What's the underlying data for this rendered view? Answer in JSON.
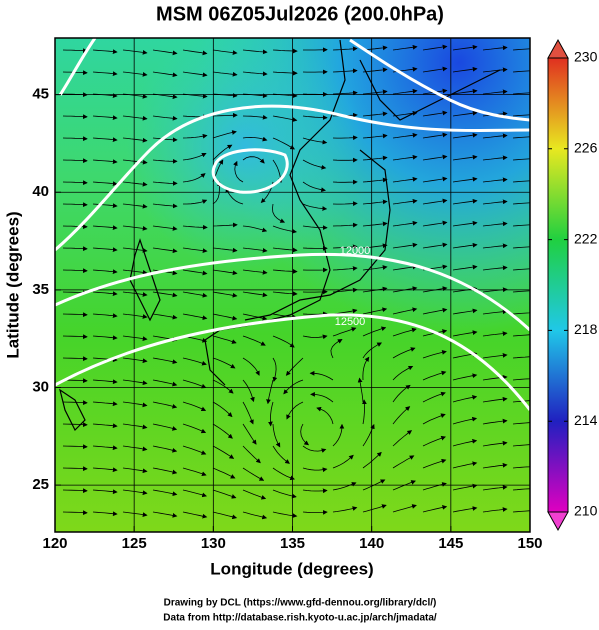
{
  "chart_data": {
    "type": "map",
    "title": "MSM 06Z05Jul2026 (200.0hPa)",
    "xlabel": "Longitude (degrees)",
    "ylabel": "Latitude  (degrees)",
    "xlim": [
      120,
      150
    ],
    "ylim": [
      22.6,
      47.9
    ],
    "xticks": [
      120,
      125,
      130,
      135,
      140,
      145,
      150
    ],
    "yticks": [
      25,
      30,
      35,
      40,
      45
    ],
    "grid": true,
    "colorbar": {
      "lim": [
        210,
        230
      ],
      "ticks": [
        210,
        214,
        218,
        222,
        226,
        230
      ]
    },
    "contour_labels": [
      "12000",
      "12500"
    ],
    "credits": [
      "Drawing by DCL (https://www.gfd-dennou.org/library/dcl/)",
      "Data from http://database.rish.kyoto-u.ac.jp/arch/jmadata/"
    ]
  }
}
